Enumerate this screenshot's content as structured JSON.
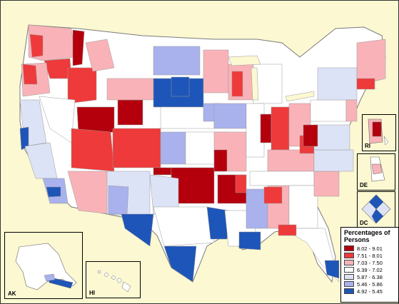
{
  "insets": {
    "ak": "AK",
    "hi": "HI",
    "ri": "RI",
    "de": "DE",
    "dc": "DC"
  },
  "legend": {
    "title": "Percentages of Persons",
    "items": [
      {
        "label": "8.02 - 9.01",
        "color": "#b3000c"
      },
      {
        "label": "7.51 - 8.01",
        "color": "#ee3a3a"
      },
      {
        "label": "7.03 - 7.50",
        "color": "#f9b3b8"
      },
      {
        "label": "6.39 - 7.02",
        "color": "#ffffff"
      },
      {
        "label": "5.87 - 6.38",
        "color": "#dde3f6"
      },
      {
        "label": "5.46 - 5.86",
        "color": "#a9b2ec"
      },
      {
        "label": "4.92 - 5.45",
        "color": "#1e55b8"
      }
    ]
  }
}
